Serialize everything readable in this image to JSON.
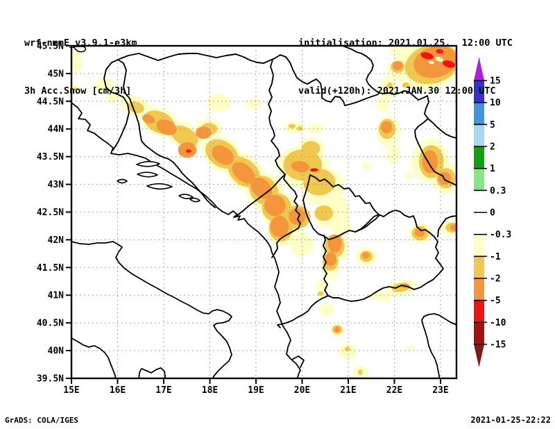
{
  "header": {
    "model_line": "wrf-nmmE_v3.9.1-e3km",
    "variable_line": "3h Acc.Snow [cm/3h]",
    "init_line": "initialisation: 2021.01.25.  12:00 UTC",
    "valid_line": "valid(+120h): 2021.JAN.30 12:00 UTC"
  },
  "footer": {
    "left": "GrADS: COLA/IGES",
    "right": "2021-01-25-22:22"
  },
  "axes": {
    "lat_values": [
      45.5,
      45,
      44.5,
      44,
      43.5,
      43,
      42.5,
      42,
      41.5,
      41,
      40.5,
      40,
      39.5
    ],
    "lat_labels": [
      "45.5N",
      "45N",
      "44.5N",
      "44N",
      "43.5N",
      "43N",
      "42.5N",
      "42N",
      "41.5N",
      "41N",
      "40.5N",
      "40N",
      "39.5N"
    ],
    "lon_values": [
      15,
      16,
      17,
      18,
      19,
      20,
      21,
      22,
      23
    ],
    "lon_labels": [
      "15E",
      "16E",
      "17E",
      "18E",
      "19E",
      "20E",
      "21E",
      "22E",
      "23E"
    ]
  },
  "colorbar": {
    "tick_labels": [
      "15",
      "10",
      "5",
      "2",
      "1",
      "0.3",
      "0",
      "-0.3",
      "-1",
      "-2",
      "-5",
      "-10",
      "-15"
    ],
    "tick_values": [
      15,
      10,
      5,
      2,
      1,
      0.3,
      0,
      -0.3,
      -1,
      -2,
      -5,
      -10,
      -15
    ],
    "segment_colors": [
      "#3333cc",
      "#4195dc",
      "#a8d7f2",
      "#12a012",
      "#87e687",
      "#ffffff",
      "#ffffff",
      "#ffffc8",
      "#f0c850",
      "#f5963c",
      "#f01414",
      "#a51010"
    ],
    "arrow_top_color": "#a821dc",
    "arrow_bottom_color": "#7d1a1a"
  },
  "chart_data": {
    "type": "heatmap",
    "title": "3h Acc.Snow [cm/3h]",
    "model": "wrf-nmmE_v3.9.1-e3km",
    "init_time": "2021.01.25. 12:00 UTC",
    "valid_time": "2021.JAN.30 12:00 UTC (+120h)",
    "units": "cm/3h",
    "lon_range": [
      15,
      23.35
    ],
    "lat_range": [
      39.5,
      45.5
    ],
    "grid": "dotted, 1 deg lon x 0.5 deg lat",
    "levels": [
      -15,
      -10,
      -5,
      -2,
      -1,
      -0.3,
      0,
      0.3,
      1,
      2,
      5,
      10,
      15
    ],
    "level_colors": {
      "cream": "#ffffc8",
      "gold": "#f0c850",
      "orange": "#f5963c",
      "red": "#f01414",
      "hole": "#ffffc8"
    },
    "level_ranges": {
      "cream": [
        -1,
        -0.3
      ],
      "gold": [
        -2,
        -1
      ],
      "orange": [
        -5,
        -2
      ],
      "red": [
        -10,
        -5
      ],
      "hole": "gap inside shaded area"
    },
    "patch_format": "[lon, lat, rx_deg, ry_deg, rotation_deg]",
    "snow_patches": {
      "cream": [
        [
          15.08,
          45.2,
          0.15,
          0.2,
          0
        ],
        [
          15.71,
          44.79,
          0.21,
          0.13,
          0
        ],
        [
          15.9,
          44.57,
          0.15,
          0.1,
          0
        ],
        [
          15.08,
          44.72,
          0.11,
          0.08,
          0
        ],
        [
          16.38,
          44.42,
          0.33,
          0.18,
          20
        ],
        [
          16.91,
          44.13,
          0.45,
          0.25,
          25
        ],
        [
          17.44,
          43.88,
          0.42,
          0.23,
          30
        ],
        [
          18.19,
          44.47,
          0.27,
          0.16,
          0
        ],
        [
          18.94,
          44.45,
          0.18,
          0.1,
          0
        ],
        [
          17.96,
          44.01,
          0.3,
          0.18,
          0
        ],
        [
          18.26,
          43.55,
          0.48,
          0.3,
          35
        ],
        [
          18.74,
          43.23,
          0.48,
          0.3,
          40
        ],
        [
          19.2,
          42.86,
          0.45,
          0.33,
          45
        ],
        [
          19.5,
          42.53,
          0.39,
          0.33,
          0
        ],
        [
          19.57,
          42.18,
          0.33,
          0.3,
          0
        ],
        [
          20.02,
          43.32,
          0.57,
          0.38,
          0
        ],
        [
          20.44,
          42.97,
          0.48,
          0.33,
          0
        ],
        [
          20.19,
          43.66,
          0.3,
          0.19,
          0
        ],
        [
          20.67,
          42.54,
          0.36,
          0.28,
          0
        ],
        [
          19.84,
          44.03,
          0.23,
          0.11,
          0
        ],
        [
          20.29,
          44.01,
          0.17,
          0.09,
          0
        ],
        [
          20.55,
          42.42,
          0.29,
          0.21,
          0
        ],
        [
          20.85,
          42.24,
          0.24,
          0.16,
          0
        ],
        [
          19.99,
          41.92,
          0.24,
          0.23,
          0
        ],
        [
          20.71,
          41.85,
          0.29,
          0.26,
          0
        ],
        [
          20.61,
          41.48,
          0.2,
          0.19,
          0
        ],
        [
          20.43,
          41.17,
          0.14,
          0.11,
          0
        ],
        [
          21.39,
          41.7,
          0.23,
          0.16,
          0
        ],
        [
          22.56,
          42.12,
          0.26,
          0.18,
          0
        ],
        [
          23.24,
          42.22,
          0.23,
          0.14,
          0
        ],
        [
          22.14,
          41.13,
          0.35,
          0.14,
          -8
        ],
        [
          20.52,
          40.74,
          0.17,
          0.11,
          0
        ],
        [
          20.76,
          40.36,
          0.15,
          0.11,
          0
        ],
        [
          20.98,
          39.99,
          0.2,
          0.14,
          0
        ],
        [
          21.26,
          39.6,
          0.18,
          0.13,
          0
        ],
        [
          22.35,
          40.06,
          0.08,
          0.05,
          0
        ],
        [
          21.77,
          40.97,
          0.17,
          0.09,
          0
        ],
        [
          22.77,
          43.42,
          0.41,
          0.4,
          0
        ],
        [
          23.12,
          43.11,
          0.33,
          0.28,
          0
        ],
        [
          21.87,
          43.95,
          0.26,
          0.28,
          0
        ],
        [
          21.98,
          43.55,
          0.14,
          0.18,
          0
        ],
        [
          22.05,
          45.07,
          0.23,
          0.16,
          0
        ],
        [
          21.87,
          44.74,
          0.2,
          0.21,
          0
        ],
        [
          21.75,
          44.45,
          0.14,
          0.14,
          0
        ],
        [
          22.74,
          45.14,
          0.72,
          0.43,
          -15
        ],
        [
          22.29,
          45.41,
          0.39,
          0.2,
          0
        ],
        [
          20.4,
          41.01,
          0.09,
          0.06,
          0
        ],
        [
          21.62,
          40.99,
          0.17,
          0.08,
          0
        ],
        [
          21.39,
          43.34,
          0.09,
          0.07,
          0
        ],
        [
          22.32,
          43.16,
          0.09,
          0.06,
          0
        ]
      ],
      "gold": [
        [
          15.08,
          44.72,
          0.05,
          0.03,
          0
        ],
        [
          16.4,
          44.39,
          0.18,
          0.1,
          20
        ],
        [
          16.91,
          44.12,
          0.36,
          0.19,
          25
        ],
        [
          17.45,
          43.87,
          0.32,
          0.16,
          30
        ],
        [
          17.98,
          44.0,
          0.18,
          0.11,
          0
        ],
        [
          18.26,
          43.55,
          0.39,
          0.23,
          35
        ],
        [
          18.74,
          43.22,
          0.39,
          0.23,
          40
        ],
        [
          19.17,
          42.89,
          0.35,
          0.24,
          45
        ],
        [
          19.45,
          42.58,
          0.32,
          0.26,
          0
        ],
        [
          19.54,
          42.21,
          0.26,
          0.24,
          0
        ],
        [
          20.01,
          43.35,
          0.42,
          0.28,
          0
        ],
        [
          20.37,
          43.04,
          0.35,
          0.24,
          0
        ],
        [
          20.19,
          43.65,
          0.2,
          0.13,
          0
        ],
        [
          20.47,
          42.48,
          0.2,
          0.14,
          0
        ],
        [
          19.78,
          44.05,
          0.08,
          0.04,
          0
        ],
        [
          19.95,
          44.01,
          0.06,
          0.04,
          0
        ],
        [
          20.71,
          41.89,
          0.21,
          0.21,
          0
        ],
        [
          20.61,
          41.6,
          0.17,
          0.16,
          0
        ],
        [
          21.39,
          41.7,
          0.14,
          0.1,
          0
        ],
        [
          22.56,
          42.12,
          0.18,
          0.13,
          0
        ],
        [
          23.26,
          42.22,
          0.15,
          0.09,
          0
        ],
        [
          22.14,
          41.14,
          0.2,
          0.08,
          -8
        ],
        [
          20.76,
          40.38,
          0.11,
          0.08,
          0
        ],
        [
          20.98,
          40.03,
          0.06,
          0.04,
          0
        ],
        [
          21.26,
          39.61,
          0.05,
          0.05,
          0
        ],
        [
          22.8,
          43.41,
          0.27,
          0.3,
          0
        ],
        [
          23.12,
          43.11,
          0.21,
          0.18,
          0
        ],
        [
          21.84,
          44.0,
          0.18,
          0.18,
          0
        ],
        [
          22.07,
          45.12,
          0.15,
          0.11,
          0
        ],
        [
          22.25,
          44.79,
          0.08,
          0.05,
          0
        ],
        [
          21.9,
          44.79,
          0.06,
          0.05,
          0
        ],
        [
          22.82,
          45.17,
          0.6,
          0.35,
          -15
        ],
        [
          19.89,
          42.41,
          0.29,
          0.21,
          0
        ],
        [
          20.4,
          41.03,
          0.06,
          0.04,
          0
        ]
      ],
      "orange": [
        [
          16.67,
          44.18,
          0.14,
          0.08,
          20
        ],
        [
          17.06,
          44.03,
          0.23,
          0.13,
          25
        ],
        [
          17.51,
          43.62,
          0.2,
          0.14,
          0
        ],
        [
          17.86,
          43.93,
          0.17,
          0.11,
          0
        ],
        [
          18.28,
          43.53,
          0.26,
          0.15,
          35
        ],
        [
          18.73,
          43.21,
          0.29,
          0.15,
          40
        ],
        [
          19.12,
          42.93,
          0.26,
          0.16,
          45
        ],
        [
          19.41,
          42.62,
          0.23,
          0.19,
          0
        ],
        [
          19.51,
          42.24,
          0.2,
          0.19,
          0
        ],
        [
          19.89,
          42.42,
          0.18,
          0.15,
          0
        ],
        [
          19.96,
          43.32,
          0.2,
          0.1,
          10
        ],
        [
          20.71,
          41.93,
          0.15,
          0.16,
          0
        ],
        [
          20.62,
          41.65,
          0.12,
          0.13,
          0
        ],
        [
          21.38,
          41.72,
          0.08,
          0.06,
          0
        ],
        [
          22.55,
          42.13,
          0.11,
          0.08,
          0
        ],
        [
          23.3,
          42.22,
          0.09,
          0.06,
          0
        ],
        [
          22.23,
          41.17,
          0.09,
          0.04,
          0
        ],
        [
          20.76,
          40.38,
          0.06,
          0.05,
          0
        ],
        [
          22.77,
          43.41,
          0.17,
          0.21,
          0
        ],
        [
          23.09,
          43.11,
          0.14,
          0.11,
          0
        ],
        [
          21.83,
          44.03,
          0.12,
          0.11,
          0
        ],
        [
          22.07,
          45.14,
          0.11,
          0.08,
          0
        ],
        [
          22.89,
          45.21,
          0.48,
          0.28,
          -15
        ]
      ],
      "red": [
        [
          17.54,
          43.6,
          0.06,
          0.03,
          0
        ],
        [
          20.26,
          43.26,
          0.09,
          0.03,
          0
        ],
        [
          22.71,
          45.32,
          0.14,
          0.06,
          15
        ],
        [
          23.18,
          45.17,
          0.14,
          0.06,
          15
        ],
        [
          22.98,
          45.4,
          0.08,
          0.04,
          0
        ]
      ],
      "hole": [
        [
          22.97,
          45.26,
          0.09,
          0.04,
          15
        ],
        [
          22.8,
          45.2,
          0.06,
          0.03,
          15
        ]
      ]
    }
  },
  "style": {
    "grid_color": "#999999",
    "frame_color": "#000000"
  }
}
